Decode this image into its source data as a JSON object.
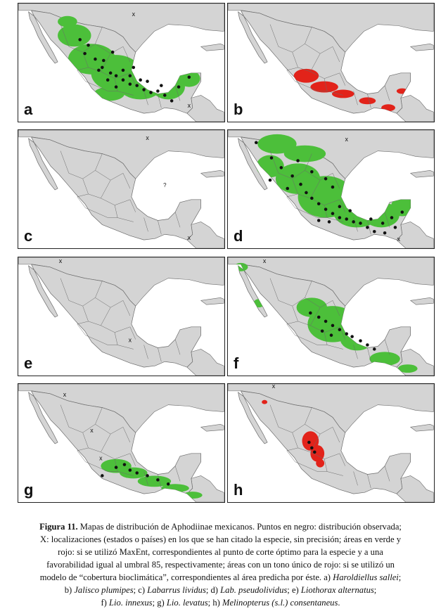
{
  "panels": [
    {
      "label": "a",
      "fill": "green"
    },
    {
      "label": "b",
      "fill": "red"
    },
    {
      "label": "c",
      "fill": "none"
    },
    {
      "label": "d",
      "fill": "green"
    },
    {
      "label": "e",
      "fill": "none"
    },
    {
      "label": "f",
      "fill": "green"
    },
    {
      "label": "g",
      "fill": "green"
    },
    {
      "label": "h",
      "fill": "red"
    }
  ],
  "colors": {
    "land": "#d4d4d4",
    "sea": "#ffffff",
    "border": "#6a6a6a",
    "green": "#4cbf3a",
    "red": "#e2231a",
    "point": "#111111"
  },
  "caption": {
    "fig_label": "Figura 11.",
    "line1": " Mapas de distribución de Aphodiinae mexicanos. Puntos en negro: distribución observada;",
    "line2": "X: localizaciones (estados o países) en los que se han citado la especie, sin precisión; áreas en verde y",
    "line3": "rojo: si se utilizó MaxEnt, correspondientes al punto de corte óptimo para la especie y a una",
    "line4": "favorabilidad igual al umbral 85, respectivamente; áreas con un tono único de rojo: si se utilizó un",
    "line5a": "modelo de “cobertura bioclimática”, correspondientes al área predicha por éste. a) ",
    "sp_a": "Haroldiellus sallei",
    "line5b": ";",
    "p_b": "b) ",
    "sp_b": "Jalisco plumipes",
    "p_c": "; c) ",
    "sp_c": "Labarrus lividus",
    "p_d": "; d) ",
    "sp_d": "Lab. pseudolividus",
    "p_e": "; e) ",
    "sp_e": "Liothorax alternatus",
    "p_e2": ";",
    "p_f": "f) ",
    "sp_f": "Lio. innexus",
    "p_g": "; g) ",
    "sp_g": "Lio. levatus",
    "p_h": "; h) ",
    "sp_h": "Melinopterus (s.l.) consentaneus",
    "end": "."
  }
}
